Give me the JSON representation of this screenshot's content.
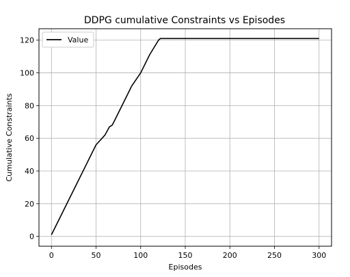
{
  "chart_data": {
    "type": "line",
    "title": "DDPG cumulative Constraints vs Episodes",
    "xlabel": "Episodes",
    "ylabel": "Cumulative Constraints",
    "xlim": [
      -14,
      314
    ],
    "ylim": [
      -6,
      127
    ],
    "xticks": [
      0,
      50,
      100,
      150,
      200,
      250,
      300
    ],
    "yticks": [
      0,
      20,
      40,
      60,
      80,
      100,
      120
    ],
    "grid": true,
    "legend_position": "upper-left",
    "series": [
      {
        "name": "Value",
        "color": "#000000",
        "x": [
          0,
          10,
          20,
          30,
          40,
          50,
          60,
          65,
          68,
          70,
          80,
          90,
          100,
          110,
          120,
          122,
          150,
          200,
          250,
          300
        ],
        "y": [
          1,
          12,
          23,
          34,
          45,
          56,
          62,
          67,
          68,
          70,
          81,
          92,
          100,
          111,
          120,
          121,
          121,
          121,
          121,
          121
        ]
      }
    ]
  }
}
